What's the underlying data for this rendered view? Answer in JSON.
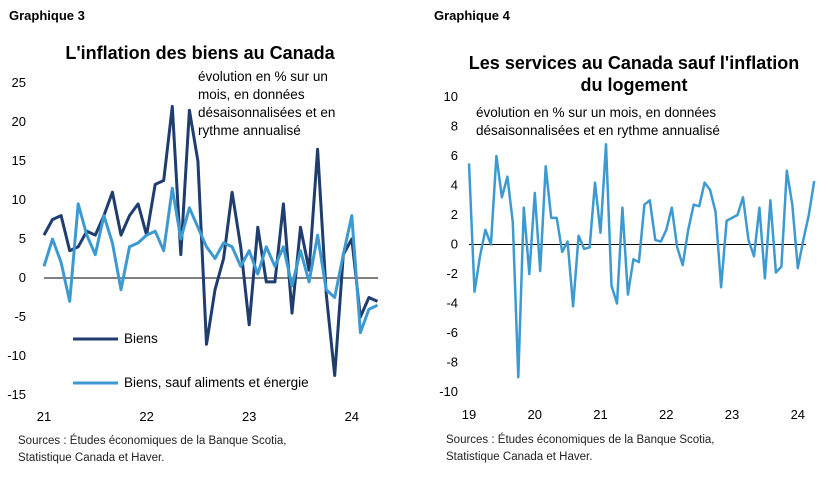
{
  "left": {
    "graph_label": "Graphique 3",
    "title": "L'inflation des biens au Canada",
    "subtitle_lines": [
      "évolution en % sur un",
      "mois, en données",
      "désaisonnalisées et en",
      "rythme annualisé"
    ],
    "source_lines": [
      "Sources : Études économiques de la Banque Scotia,",
      "Statistique Canada et Haver."
    ]
  },
  "right": {
    "graph_label": "Graphique 4",
    "title_lines": [
      "Les services au Canada sauf l'inflation",
      "du logement"
    ],
    "subtitle_lines": [
      "évolution en % sur un mois, en données",
      "désaisonnalisées et en rythme annualisé"
    ],
    "source_lines": [
      "Sources : Études économiques de la Banque Scotia,",
      "Statistique Canada et Haver."
    ]
  },
  "colors": {
    "dark_blue": "#1f3d6e",
    "light_blue": "#3d9ad1",
    "axis": "#000000"
  },
  "chart_data": [
    {
      "type": "line",
      "title": "L'inflation des biens au Canada",
      "x_tick_labels": [
        "21",
        "22",
        "23",
        "24"
      ],
      "y_ticks": [
        25,
        20,
        15,
        10,
        5,
        0,
        -5,
        -10,
        -15
      ],
      "ylim": [
        -15,
        25
      ],
      "x_start": "2021-01",
      "series": [
        {
          "name": "Biens",
          "color": "#1f3d6e",
          "values": [
            5.5,
            7.5,
            8.0,
            3.5,
            4.0,
            6.0,
            5.5,
            8.0,
            11.0,
            5.5,
            8.0,
            9.5,
            5.5,
            12.0,
            12.5,
            22.0,
            3.0,
            21.5,
            15.0,
            -8.5,
            -1.5,
            2.5,
            11.0,
            4.0,
            -6.0,
            6.5,
            -0.5,
            -0.5,
            9.5,
            -4.5,
            6.5,
            1.0,
            16.5,
            -2.0,
            -12.5,
            3.0,
            5.0,
            -5.0,
            -2.5,
            -3.0
          ]
        },
        {
          "name": "Biens, sauf aliments et énergie",
          "color": "#3d9ad1",
          "values": [
            1.5,
            5.0,
            2.0,
            -3.0,
            9.5,
            5.5,
            3.0,
            8.0,
            4.5,
            -1.5,
            4.0,
            4.5,
            5.5,
            6.0,
            3.5,
            11.5,
            5.0,
            9.0,
            6.5,
            4.0,
            2.5,
            4.5,
            4.0,
            1.5,
            3.5,
            0.5,
            4.0,
            1.5,
            4.0,
            -1.0,
            3.5,
            -0.5,
            5.5,
            -1.5,
            -2.5,
            3.0,
            8.0,
            -7.0,
            -4.0,
            -3.5
          ]
        }
      ],
      "legend_position": "bottom-left"
    },
    {
      "type": "line",
      "title": "Les services au Canada sauf l'inflation du logement",
      "x_tick_labels": [
        "19",
        "20",
        "21",
        "22",
        "23",
        "24"
      ],
      "y_ticks": [
        10,
        8,
        6,
        4,
        2,
        0,
        -2,
        -4,
        -6,
        -8,
        -10
      ],
      "ylim": [
        -10,
        10
      ],
      "x_start": "2019-01",
      "series": [
        {
          "color": "#3d9ad1",
          "values": [
            5.5,
            -3.2,
            -0.8,
            1.0,
            0.0,
            6.0,
            3.2,
            4.6,
            1.5,
            -9.0,
            2.5,
            -2.0,
            3.5,
            -1.8,
            5.3,
            1.8,
            1.8,
            -0.5,
            0.2,
            -4.2,
            0.6,
            -0.3,
            -0.2,
            4.2,
            0.8,
            6.8,
            -2.8,
            -4.0,
            2.5,
            -3.4,
            -1.0,
            -1.2,
            2.7,
            3.0,
            0.3,
            0.2,
            1.0,
            2.5,
            -0.2,
            -1.4,
            1.0,
            2.7,
            2.6,
            4.2,
            3.7,
            2.2,
            -2.9,
            1.6,
            1.8,
            2.0,
            3.2,
            0.3,
            -0.8,
            2.5,
            -2.3,
            3.0,
            -1.9,
            -1.5,
            5.0,
            2.7,
            -1.6,
            0.3,
            2.0,
            4.3
          ]
        }
      ]
    }
  ]
}
